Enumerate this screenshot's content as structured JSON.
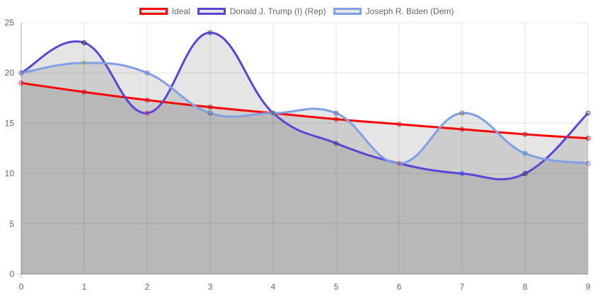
{
  "chart_data": {
    "type": "line",
    "x": [
      0,
      1,
      2,
      3,
      4,
      5,
      6,
      7,
      8,
      9
    ],
    "xlim": [
      0,
      9
    ],
    "ylim": [
      0,
      25
    ],
    "yticks": [
      0,
      5,
      10,
      15,
      20,
      25
    ],
    "grid": true,
    "legend_position": "top",
    "series": [
      {
        "name": "Ideal",
        "values": [
          19,
          18.1,
          17.3,
          16.6,
          16,
          15.4,
          14.9,
          14.4,
          13.9,
          13.5
        ],
        "color": "#ff0000",
        "fill": "rgba(0,0,0,0.1)",
        "point_colors": [
          "#e8344a",
          "#c02b3a",
          "#d63a4a",
          "#b83240",
          "#a8283a",
          "#c03040",
          "#d94050",
          "#c83a48",
          "#b0283a",
          "#d02838"
        ]
      },
      {
        "name": "Donald J. Trump (I) (Rep)",
        "values": [
          20,
          23,
          16,
          24,
          16,
          13,
          11,
          10,
          10,
          16
        ],
        "color": "#5b44d6",
        "fill": "rgba(0,0,0,0.1)",
        "point_colors": [
          "#6a5acd",
          "#333344",
          "#cc44aa",
          "#2e7d9a",
          "#444444",
          "#555566",
          "#cc4455",
          "#3366ff",
          "#333355",
          "#884466"
        ]
      },
      {
        "name": "Joseph R. Biden (Dem)",
        "values": [
          20,
          21,
          20,
          16,
          16,
          16,
          11,
          16,
          12,
          11
        ],
        "color": "#7fa0e6",
        "fill": "rgba(0,0,0,0.1)",
        "point_colors": [
          "#8877cc",
          "#aacc44",
          "#6688dd",
          "#666677",
          "#66aa88",
          "#8866cc",
          "#cc7788",
          "#aa7744",
          "#5599dd",
          "#9977cc"
        ]
      }
    ]
  }
}
